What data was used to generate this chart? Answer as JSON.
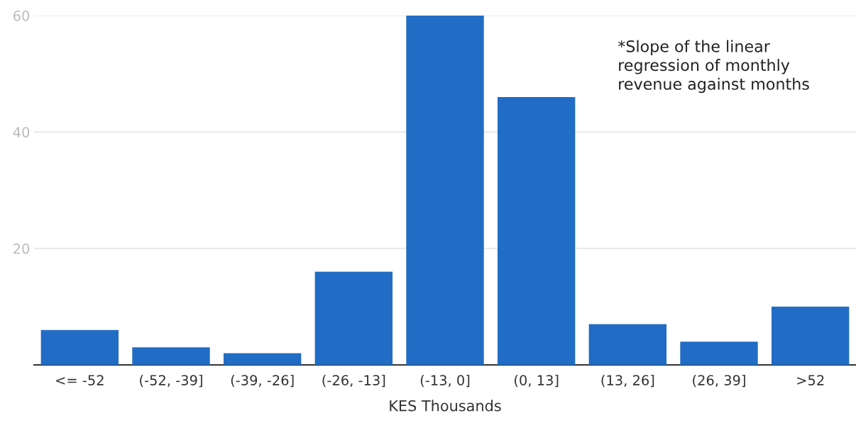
{
  "chart_data": {
    "type": "bar",
    "xlabel": "KES Thousands",
    "categories": [
      "<= -52",
      "(-52, -39]",
      "(-39, -26]",
      "(-26, -13]",
      "(-13, 0]",
      "(0, 13]",
      "(13, 26]",
      "(26, 39]",
      ">52"
    ],
    "values": [
      6,
      3,
      2,
      16,
      60,
      46,
      7,
      4,
      10
    ],
    "color": "#216cc4",
    "ylim": [
      0,
      60
    ],
    "yticks": [
      20,
      40,
      60
    ],
    "grid": "y",
    "annotations": [
      "*Slope of the linear\nregression of monthly\nrevenue against months"
    ]
  }
}
